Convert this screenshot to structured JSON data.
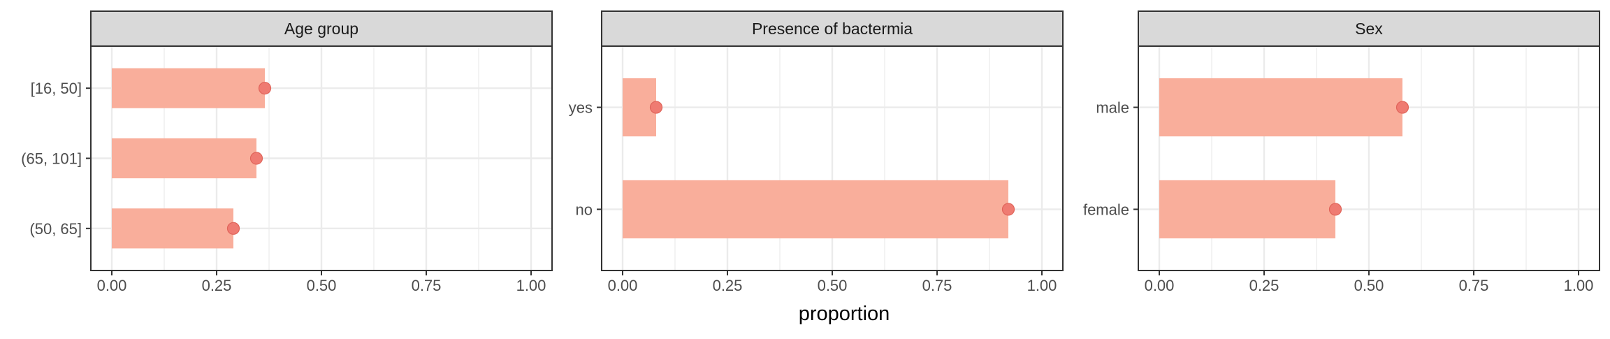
{
  "chart_data": {
    "type": "bar",
    "xlabel": "proportion",
    "xlim": [
      0,
      1
    ],
    "x_ticks": [
      "0.00",
      "0.25",
      "0.50",
      "0.75",
      "1.00"
    ],
    "x_tick_values": [
      0,
      0.25,
      0.5,
      0.75,
      1.0
    ],
    "grid": true,
    "colors": {
      "bar": "#f9ae9b",
      "point": "#ef7b72",
      "point_stroke": "#e0645a",
      "strip": "#d9d9d9",
      "grid": "#ebebeb",
      "panel_border": "#333333"
    },
    "panels": [
      {
        "title": "Age group",
        "categories": [
          "[16, 50]",
          "(65, 101]",
          "(50, 65]"
        ],
        "values": [
          0.365,
          0.345,
          0.29
        ]
      },
      {
        "title": "Presence of bactermia",
        "categories": [
          "yes",
          "no"
        ],
        "values": [
          0.08,
          0.92
        ]
      },
      {
        "title": "Sex",
        "categories": [
          "male",
          "female"
        ],
        "values": [
          0.58,
          0.42
        ]
      }
    ]
  }
}
